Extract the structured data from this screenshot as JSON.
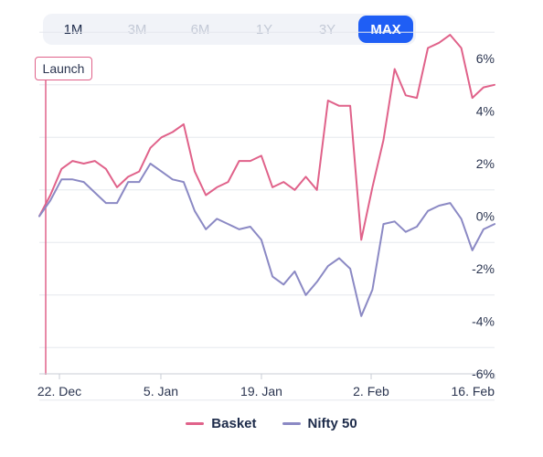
{
  "range_selector": {
    "options": [
      "1M",
      "3M",
      "6M",
      "1Y",
      "3Y",
      "MAX"
    ],
    "selected": "MAX"
  },
  "annotation": {
    "label": "Launch"
  },
  "colors": {
    "basket": "#e0628a",
    "nifty": "#8b89c4",
    "accent": "#1f5ef5"
  },
  "chart_data": {
    "type": "line",
    "title": "",
    "xlabel": "",
    "ylabel": "",
    "x_ticks": [
      "22. Dec",
      "5. Jan",
      "19. Jan",
      "2. Feb",
      "16. Feb"
    ],
    "y_ticks": [
      "6%",
      "4%",
      "2%",
      "0%",
      "-2%",
      "-4%",
      "-6%"
    ],
    "y_tick_values": [
      6,
      4,
      2,
      0,
      -2,
      -4,
      -6
    ],
    "ylim": [
      -6,
      6
    ],
    "legend_position": "bottom",
    "series": [
      {
        "name": "Basket",
        "values": [
          0.0,
          0.8,
          1.8,
          2.1,
          2.0,
          2.1,
          1.8,
          1.1,
          1.5,
          1.7,
          2.6,
          3.0,
          3.2,
          3.5,
          1.7,
          0.8,
          1.1,
          1.3,
          2.1,
          2.1,
          2.3,
          1.1,
          1.3,
          1.0,
          1.5,
          1.0,
          4.4,
          4.2,
          4.2,
          -0.9,
          1.1,
          2.9,
          5.6,
          4.6,
          4.5,
          6.4,
          6.6,
          6.9,
          6.4,
          4.5,
          4.9,
          5.0
        ]
      },
      {
        "name": "Nifty 50",
        "values": [
          0.0,
          0.6,
          1.4,
          1.4,
          1.3,
          0.9,
          0.5,
          0.5,
          1.3,
          1.3,
          2.0,
          1.7,
          1.4,
          1.3,
          0.2,
          -0.5,
          -0.1,
          -0.3,
          -0.5,
          -0.4,
          -0.9,
          -2.3,
          -2.6,
          -2.1,
          -3.0,
          -2.5,
          -1.9,
          -1.6,
          -2.0,
          -3.8,
          -2.8,
          -0.3,
          -0.2,
          -0.6,
          -0.4,
          0.2,
          0.4,
          0.5,
          -0.1,
          -1.3,
          -0.5,
          -0.3
        ]
      }
    ]
  }
}
